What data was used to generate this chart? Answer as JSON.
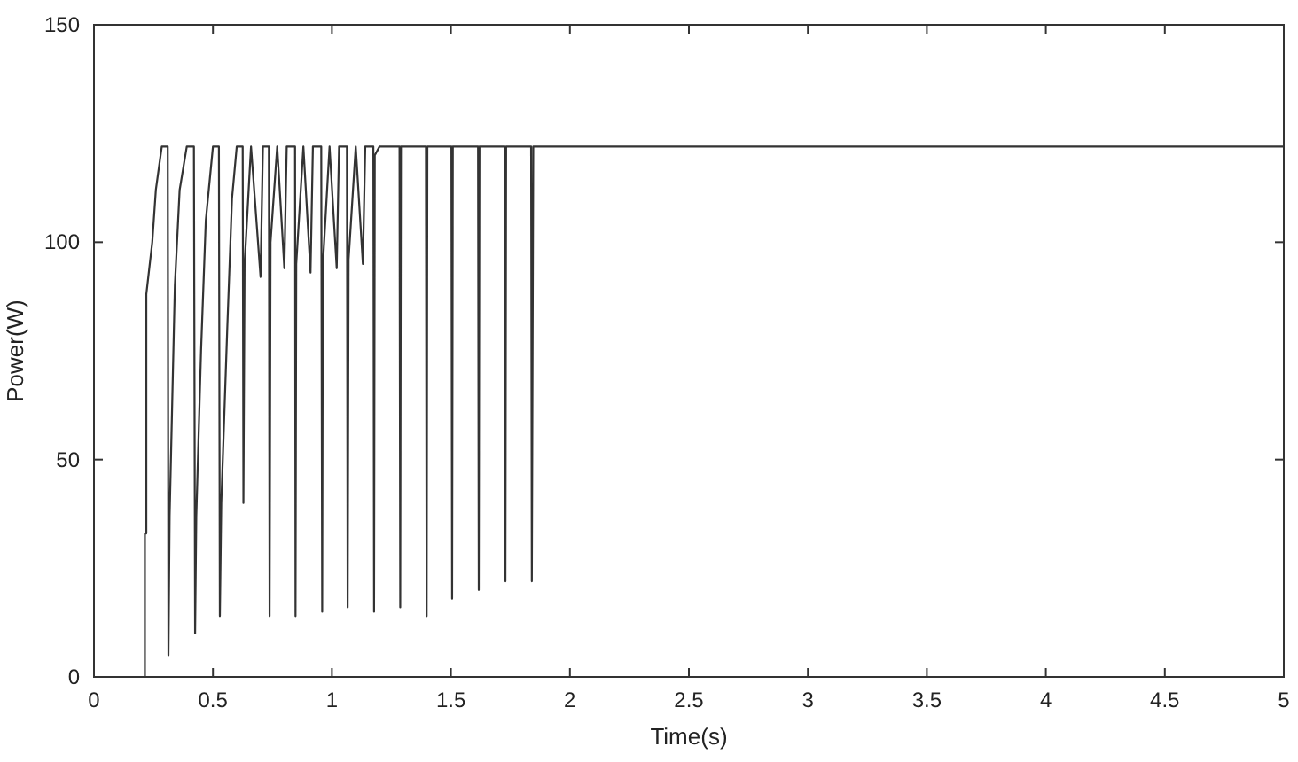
{
  "chart_data": {
    "type": "line",
    "xlabel": "Time(s)",
    "ylabel": "Power(W)",
    "xlim": [
      0,
      5
    ],
    "ylim": [
      0,
      150
    ],
    "xticks": [
      0,
      0.5,
      1,
      1.5,
      2,
      2.5,
      3,
      3.5,
      4,
      4.5,
      5
    ],
    "yticks": [
      0,
      50,
      100,
      150
    ],
    "grid": false,
    "marker": "none",
    "line_style": "solid",
    "series": [
      {
        "color": "#333333",
        "x": [
          0,
          0.214,
          0.214,
          0.22,
          0.22,
          0.245,
          0.26,
          0.285,
          0.31,
          0.313,
          0.318,
          0.34,
          0.36,
          0.39,
          0.42,
          0.425,
          0.43,
          0.45,
          0.47,
          0.5,
          0.525,
          0.529,
          0.535,
          0.56,
          0.58,
          0.6,
          0.625,
          0.628,
          0.633,
          0.66,
          0.7,
          0.71,
          0.735,
          0.738,
          0.742,
          0.77,
          0.8,
          0.81,
          0.845,
          0.847,
          0.85,
          0.88,
          0.91,
          0.92,
          0.955,
          0.959,
          0.962,
          0.99,
          1.02,
          1.03,
          1.063,
          1.066,
          1.07,
          1.1,
          1.13,
          1.14,
          1.174,
          1.177,
          1.18,
          1.2,
          1.284,
          1.287,
          1.29,
          1.395,
          1.398,
          1.401,
          1.502,
          1.505,
          1.508,
          1.614,
          1.617,
          1.62,
          1.726,
          1.729,
          1.732,
          1.837,
          1.84,
          1.846,
          5
        ],
        "values": [
          0,
          0,
          33,
          33,
          88,
          100,
          112,
          122,
          122,
          5,
          37,
          90,
          112,
          122,
          122,
          10,
          37,
          75,
          105,
          122,
          122,
          14,
          40,
          80,
          110,
          122,
          122,
          40,
          95,
          122,
          92,
          122,
          122,
          14,
          100,
          122,
          94,
          122,
          122,
          14,
          95,
          122,
          93,
          122,
          122,
          15,
          95,
          122,
          94,
          122,
          122,
          16,
          96,
          122,
          95,
          122,
          122,
          15,
          120,
          122,
          122,
          16,
          122,
          122,
          14,
          122,
          122,
          18,
          122,
          122,
          20,
          122,
          122,
          22,
          122,
          122,
          22,
          122,
          122
        ]
      }
    ]
  }
}
